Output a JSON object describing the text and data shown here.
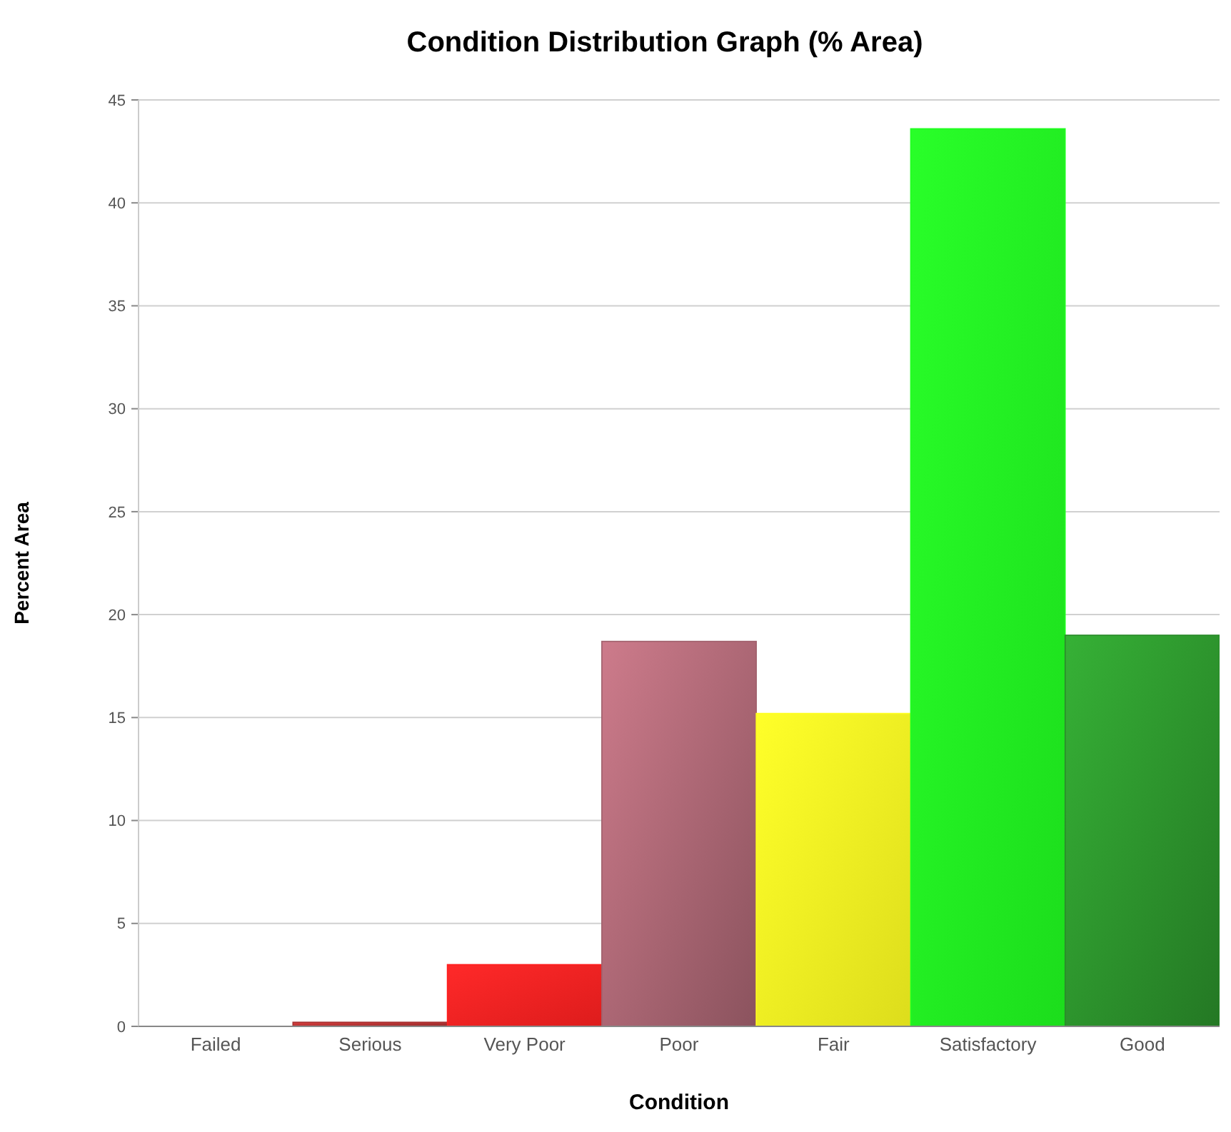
{
  "chart_data": {
    "type": "bar",
    "title": "Condition Distribution Graph (% Area)",
    "xlabel": "Condition",
    "ylabel": "Percent Area",
    "categories": [
      "Failed",
      "Serious",
      "Very Poor",
      "Poor",
      "Fair",
      "Satisfactory",
      "Good"
    ],
    "values": [
      0,
      0.2,
      3.0,
      18.7,
      15.2,
      43.6,
      19.0
    ],
    "colors": [
      "#800000",
      "#a83030",
      "#ff2020",
      "#a0606c",
      "#ffff20",
      "#20ff20",
      "#2a8a2a"
    ],
    "ylim": [
      0,
      45
    ],
    "yticks": [
      0,
      5,
      10,
      15,
      20,
      25,
      30,
      35,
      40,
      45
    ],
    "grid": true
  }
}
